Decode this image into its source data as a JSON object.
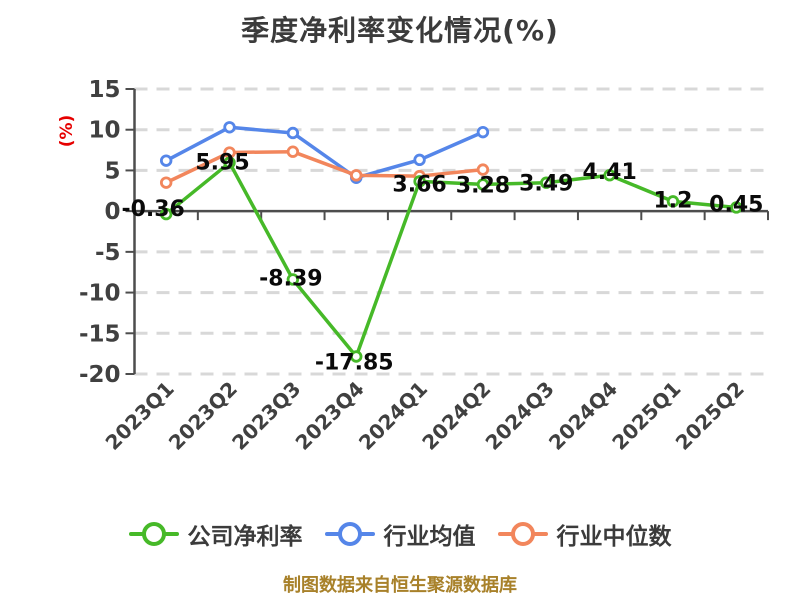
{
  "chart_data": {
    "type": "line",
    "title": "季度净利率变化情况(%)",
    "ylabel": "(%)",
    "categories": [
      "2023Q1",
      "2023Q2",
      "2023Q3",
      "2023Q4",
      "2024Q1",
      "2024Q2",
      "2024Q3",
      "2024Q4",
      "2025Q1",
      "2025Q2"
    ],
    "ylim": [
      -20,
      15
    ],
    "yticks": [
      15,
      10,
      5,
      0,
      -5,
      -10,
      -15,
      -20
    ],
    "grid": "horizontal-dashed",
    "legend_position": "bottom",
    "series": [
      {
        "key": "company-net-margin",
        "name": "公司净利率",
        "color": "#46b928",
        "values": [
          -0.36,
          5.95,
          -8.39,
          -17.85,
          3.66,
          3.28,
          3.49,
          4.41,
          1.2,
          0.45
        ],
        "point_labels": [
          "-0.36",
          "5.95",
          "-8.39",
          "-17.85",
          "3.66",
          "3.28",
          "3.49",
          "4.41",
          "1.2",
          "0.45"
        ],
        "label_offsets": [
          [
            -13,
            2
          ],
          [
            -7,
            7
          ],
          [
            -2,
            6
          ],
          [
            -2,
            13
          ],
          [
            0,
            10
          ],
          [
            0,
            8
          ],
          [
            0,
            8
          ],
          [
            0,
            4
          ],
          [
            0,
            6
          ],
          [
            0,
            4
          ]
        ]
      },
      {
        "key": "industry-mean",
        "name": "行业均值",
        "color": "#5586e9",
        "values": [
          6.2,
          10.3,
          9.6,
          4.1,
          6.3,
          9.7
        ]
      },
      {
        "key": "industry-median",
        "name": "行业中位数",
        "color": "#f2865c",
        "values": [
          3.5,
          7.2,
          7.3,
          4.4,
          4.3,
          5.1
        ]
      }
    ],
    "styles": {
      "axis_color": "#4d4d4d",
      "grid_color": "#d8d8d8",
      "tick_label_color": "#404040",
      "data_label_color": "#0a0a0a",
      "ylabel_color": "#e60000",
      "title_color": "#3b3b3b",
      "legend_text_color": "#3b3b3b",
      "marker_fill": "#ffffff"
    },
    "footer": {
      "text": "制图数据来自恒生聚源数据库",
      "color": "#a8812a"
    }
  }
}
